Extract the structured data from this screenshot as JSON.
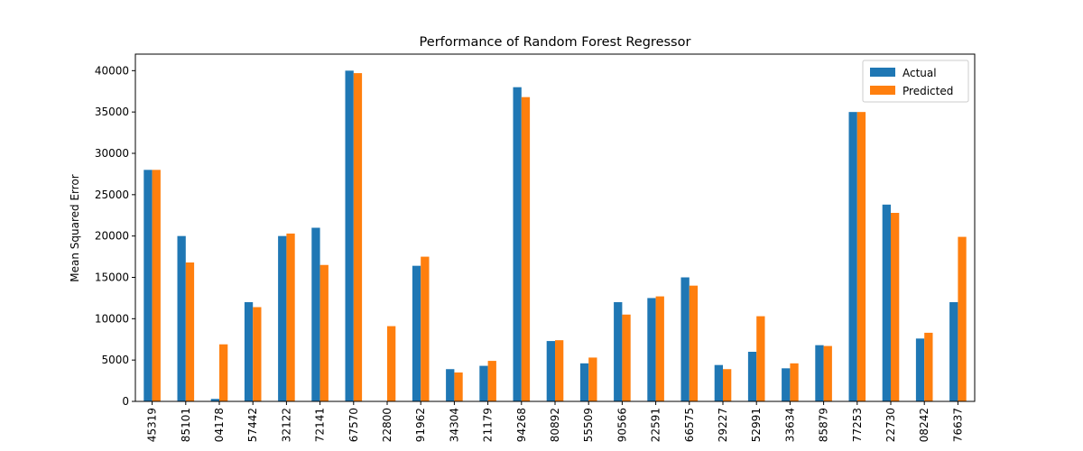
{
  "chart_data": {
    "type": "bar",
    "title": "Performance of Random Forest Regressor",
    "xlabel": "",
    "ylabel": "Mean Squared Error",
    "ylim": [
      0,
      42000
    ],
    "yticks": [
      0,
      5000,
      10000,
      15000,
      20000,
      25000,
      30000,
      35000,
      40000
    ],
    "grid": false,
    "legend_position": "top-right",
    "categories": [
      "45319",
      "85101",
      "04178",
      "57442",
      "32122",
      "72141",
      "67570",
      "22800",
      "91962",
      "34304",
      "21179",
      "94268",
      "80892",
      "55509",
      "90566",
      "22591",
      "66575",
      "29227",
      "52991",
      "33634",
      "85879",
      "77253",
      "22730",
      "08242",
      "76637"
    ],
    "series": [
      {
        "name": "Actual",
        "color": "#1f77b4",
        "values": [
          28000,
          20000,
          300,
          12000,
          20000,
          21000,
          40000,
          0,
          16400,
          3900,
          4300,
          38000,
          7300,
          4600,
          12000,
          12500,
          15000,
          4400,
          6000,
          4000,
          6800,
          35000,
          23800,
          7600,
          12000
        ]
      },
      {
        "name": "Predicted",
        "color": "#ff7f0e",
        "values": [
          28000,
          16800,
          6900,
          11400,
          20300,
          16500,
          39700,
          9100,
          17500,
          3500,
          4900,
          36800,
          7400,
          5300,
          10500,
          12700,
          14000,
          3900,
          10300,
          4600,
          6700,
          35000,
          22800,
          8300,
          19900
        ]
      }
    ]
  }
}
